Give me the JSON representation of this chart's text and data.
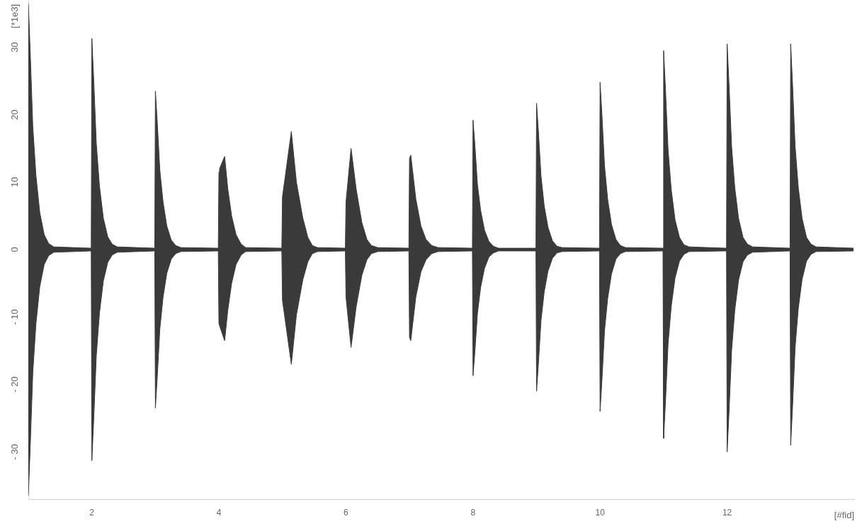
{
  "chart_data": {
    "type": "area",
    "ylabel": "[*1e3]",
    "xlabel": "[#fid]",
    "xlim": [
      1,
      14
    ],
    "xticks": [
      2,
      4,
      6,
      8,
      10,
      12
    ],
    "ylim": [
      -37,
      37
    ],
    "yticks": [
      {
        "value": -30,
        "label": "- 30"
      },
      {
        "value": -20,
        "label": "- 20"
      },
      {
        "value": -10,
        "label": "- 10"
      },
      0,
      10,
      20,
      30
    ],
    "grid": false,
    "legend": false,
    "marker": "none",
    "line_style": "solid",
    "series": [
      {
        "color": "#3a3a3a",
        "x": [
          1,
          1.03,
          1.07,
          1.12,
          1.18,
          1.25,
          1.32,
          1.4,
          1.99,
          2,
          2.03,
          2.07,
          2.12,
          2.18,
          2.25,
          2.32,
          2.4,
          2.99,
          3,
          3.03,
          3.07,
          3.12,
          3.18,
          3.25,
          3.32,
          3.4,
          3.99,
          4,
          4.01,
          4.09,
          4.14,
          4.2,
          4.27,
          4.35,
          4.42,
          4.99,
          5,
          5.14,
          5.22,
          5.32,
          5.4,
          5.47,
          5.55,
          5.99,
          6,
          6.08,
          6.16,
          6.25,
          6.33,
          6.4,
          6.5,
          6.99,
          7,
          7.02,
          7.1,
          7.18,
          7.26,
          7.35,
          7.45,
          7.99,
          8,
          8.03,
          8.07,
          8.12,
          8.18,
          8.25,
          8.32,
          8.4,
          8.99,
          9,
          9.03,
          9.07,
          9.12,
          9.18,
          9.25,
          9.32,
          9.4,
          9.99,
          10,
          10.03,
          10.07,
          10.12,
          10.18,
          10.25,
          10.32,
          10.4,
          10.99,
          11,
          11.03,
          11.07,
          11.12,
          11.18,
          11.25,
          11.32,
          11.4,
          11.99,
          12,
          12.03,
          12.07,
          12.12,
          12.18,
          12.25,
          12.32,
          12.4,
          12.99,
          13,
          13.03,
          13.07,
          13.12,
          13.18,
          13.25,
          13.32,
          13.4,
          13.99
        ],
        "values": [
          36.5,
          29.2,
          18.3,
          11,
          5.5,
          2.2,
          0.9,
          0.4,
          0.2,
          31.3,
          25,
          15.7,
          9.4,
          4.7,
          1.9,
          0.8,
          0.4,
          0.2,
          23.5,
          18.8,
          11.8,
          7.1,
          3.5,
          1.4,
          0.6,
          0.3,
          0.2,
          11.5,
          12,
          13.8,
          9,
          5,
          2.2,
          0.8,
          0.3,
          0.2,
          7.8,
          17.5,
          10,
          4.7,
          1.8,
          0.6,
          0.3,
          0.2,
          7,
          15,
          9,
          4,
          1.5,
          0.6,
          0.3,
          0.2,
          13.5,
          14,
          7.5,
          3.5,
          1.5,
          0.6,
          0.3,
          0.2,
          19.2,
          15.4,
          9.6,
          5.8,
          2.9,
          1.2,
          0.5,
          0.2,
          0.2,
          21.7,
          17.4,
          10.9,
          6.5,
          3.3,
          1.3,
          0.5,
          0.3,
          0.2,
          24.8,
          19.8,
          12.4,
          7.4,
          3.7,
          1.5,
          0.6,
          0.3,
          0.2,
          29.5,
          23.6,
          14.8,
          8.9,
          4.4,
          1.8,
          0.7,
          0.4,
          0.2,
          30.5,
          24.4,
          15.3,
          9.2,
          4.6,
          1.8,
          0.8,
          0.4,
          0.2,
          30.5,
          24.4,
          15.3,
          9.2,
          4.6,
          1.8,
          0.8,
          0.4,
          0.2
        ]
      },
      {
        "color": "#3a3a3a",
        "x": [
          1,
          1.03,
          1.07,
          1.12,
          1.18,
          1.25,
          1.32,
          1.4,
          1.99,
          2,
          2.03,
          2.07,
          2.12,
          2.18,
          2.25,
          2.32,
          2.4,
          2.99,
          3,
          3.03,
          3.07,
          3.12,
          3.18,
          3.25,
          3.32,
          3.4,
          3.99,
          4,
          4.01,
          4.09,
          4.14,
          4.2,
          4.27,
          4.35,
          4.42,
          4.99,
          5,
          5.14,
          5.22,
          5.32,
          5.4,
          5.47,
          5.55,
          5.99,
          6,
          6.08,
          6.16,
          6.25,
          6.33,
          6.4,
          6.5,
          6.99,
          7,
          7.02,
          7.1,
          7.18,
          7.26,
          7.35,
          7.45,
          7.99,
          8,
          8.03,
          8.07,
          8.12,
          8.18,
          8.25,
          8.32,
          8.4,
          8.99,
          9,
          9.03,
          9.07,
          9.12,
          9.18,
          9.25,
          9.32,
          9.4,
          9.99,
          10,
          10.03,
          10.07,
          10.12,
          10.18,
          10.25,
          10.32,
          10.4,
          10.99,
          11,
          11.03,
          11.07,
          11.12,
          11.18,
          11.25,
          11.32,
          11.4,
          11.99,
          12,
          12.03,
          12.07,
          12.12,
          12.18,
          12.25,
          12.32,
          12.4,
          12.99,
          13,
          13.03,
          13.07,
          13.12,
          13.18,
          13.25,
          13.32,
          13.4,
          13.99
        ],
        "values": [
          -36.5,
          -29.2,
          -18.3,
          -11,
          -5.5,
          -2.2,
          -0.9,
          -0.4,
          -0.2,
          -31.3,
          -25,
          -15.7,
          -9.4,
          -4.7,
          -1.9,
          -0.8,
          -0.4,
          -0.2,
          -23.5,
          -18.8,
          -11.8,
          -7.1,
          -3.5,
          -1.4,
          -0.6,
          -0.3,
          -0.2,
          -11,
          -11,
          -13.5,
          -9,
          -5,
          -2.2,
          -0.8,
          -0.3,
          -0.2,
          -7.5,
          -17,
          -9.7,
          -4.5,
          -1.8,
          -0.6,
          -0.3,
          -0.2,
          -7,
          -14.5,
          -8.5,
          -3.8,
          -1.5,
          -0.6,
          -0.3,
          -0.2,
          -13,
          -13.5,
          -7,
          -3.3,
          -1.5,
          -0.6,
          -0.3,
          -0.2,
          -18.7,
          -15,
          -9.4,
          -5.6,
          -2.8,
          -1.1,
          -0.5,
          -0.2,
          -0.2,
          -21,
          -16.8,
          -10.5,
          -6.3,
          -3.2,
          -1.3,
          -0.5,
          -0.3,
          -0.2,
          -24,
          -19.2,
          -12,
          -7.2,
          -3.6,
          -1.4,
          -0.6,
          -0.3,
          -0.2,
          -28,
          -22.4,
          -14,
          -8.4,
          -4.2,
          -1.7,
          -0.7,
          -0.3,
          -0.2,
          -30,
          -24,
          -15,
          -9,
          -4.5,
          -1.8,
          -0.8,
          -0.4,
          -0.2,
          -29,
          -23.2,
          -14.5,
          -8.7,
          -4.4,
          -1.7,
          -0.7,
          -0.3,
          -0.2
        ]
      }
    ]
  }
}
